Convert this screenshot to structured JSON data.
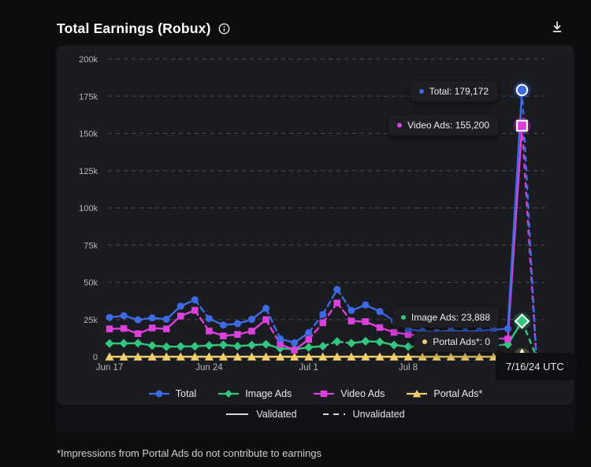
{
  "header": {
    "title": "Total Earnings (Robux)"
  },
  "footnote": {
    "text": "*Impressions from Portal Ads do not contribute to earnings"
  },
  "colors": {
    "page_bg": "#0c0d0f",
    "card_bg": "#121216",
    "panel_bg": "#1b1c21",
    "grid": "#47484d",
    "axis_zero": "#6f7076",
    "tick_text": "#b4b7bd",
    "total": "#3d6be5",
    "image": "#32c77f",
    "video": "#de40de",
    "portal": "#f2cf6d",
    "legend_line": "#d9dadd"
  },
  "tooltips": {
    "total": {
      "text": "Total: 179,172",
      "color": "#3d6be5"
    },
    "video": {
      "text": "Video Ads: 155,200",
      "color": "#de40de"
    },
    "image": {
      "text": "Image Ads: 23,888",
      "color": "#32c77f"
    },
    "portal": {
      "text": "Portal Ads*: 0",
      "color": "#f2cf6d"
    }
  },
  "date_tooltip": {
    "text": "7/16/24 UTC"
  },
  "legend": {
    "series": [
      {
        "label": "Total",
        "shape": "circle",
        "color": "#3d6be5"
      },
      {
        "label": "Image Ads",
        "shape": "diamond",
        "color": "#32c77f"
      },
      {
        "label": "Video Ads",
        "shape": "square",
        "color": "#de40de"
      },
      {
        "label": "Portal Ads*",
        "shape": "triangle",
        "color": "#f2cf6d"
      }
    ],
    "styles": [
      {
        "label": "Validated",
        "dashed": false
      },
      {
        "label": "Unvalidated",
        "dashed": true
      }
    ]
  },
  "chart_data": {
    "type": "line",
    "title": "Total Earnings (Robux)",
    "ylim": [
      0,
      200000
    ],
    "grid": "dashed-horizontal",
    "legend_position": "bottom",
    "dates": [
      "6/17",
      "6/18",
      "6/19",
      "6/20",
      "6/21",
      "6/22",
      "6/23",
      "6/24",
      "6/25",
      "6/26",
      "6/27",
      "6/28",
      "6/29",
      "6/30",
      "7/1",
      "7/2",
      "7/3",
      "7/4",
      "7/5",
      "7/6",
      "7/7",
      "7/8",
      "7/9",
      "7/10",
      "7/11",
      "7/12",
      "7/13",
      "7/14",
      "7/15",
      "7/16"
    ],
    "x_ticks": [
      {
        "label": "Jun 17",
        "index": 0
      },
      {
        "label": "Jun 24",
        "index": 7
      },
      {
        "label": "Jul 1",
        "index": 14
      },
      {
        "label": "Jul 8",
        "index": 21
      }
    ],
    "y_ticks": [
      {
        "label": "0",
        "value": 0
      },
      {
        "label": "25k",
        "value": 25000
      },
      {
        "label": "50k",
        "value": 50000
      },
      {
        "label": "75k",
        "value": 75000
      },
      {
        "label": "100k",
        "value": 100000
      },
      {
        "label": "125k",
        "value": 125000
      },
      {
        "label": "150k",
        "value": 150000
      },
      {
        "label": "175k",
        "value": 175000
      },
      {
        "label": "200k",
        "value": 200000
      }
    ],
    "highlight_index": 29,
    "highlight_date_label": "7/16/24 UTC",
    "series": [
      {
        "name": "Total",
        "shape": "circle",
        "color": "#3d6be5",
        "glow": "rgba(61,107,229,0.30)",
        "values": [
          26400,
          27600,
          24800,
          26100,
          25200,
          34000,
          38300,
          25600,
          21300,
          22200,
          25100,
          32500,
          12100,
          9400,
          16200,
          28400,
          45200,
          31100,
          34800,
          30400,
          24100,
          18600,
          17200,
          16500,
          17800,
          16900,
          17500,
          18200,
          18800,
          179172
        ],
        "dashed_segments": [
          6,
          11,
          14,
          15,
          16,
          29
        ],
        "post_value": 800
      },
      {
        "name": "Image Ads",
        "shape": "diamond",
        "color": "#32c77f",
        "glow": "rgba(50,199,127,0.25)",
        "values": [
          8900,
          9000,
          9100,
          7500,
          6700,
          6900,
          7000,
          7600,
          8000,
          7100,
          7800,
          8400,
          5700,
          5000,
          6300,
          7100,
          10200,
          9100,
          10400,
          10000,
          7900,
          6800,
          6500,
          6900,
          7200,
          6600,
          7000,
          7500,
          8300,
          23888
        ],
        "dashed_segments": [
          15,
          16,
          29
        ],
        "post_value": 300
      },
      {
        "name": "Video Ads",
        "shape": "square",
        "color": "#de40de",
        "glow": "rgba(222,64,222,0.30)",
        "values": [
          18700,
          19000,
          15500,
          19300,
          18700,
          27400,
          31200,
          17300,
          14000,
          15000,
          17200,
          24900,
          8400,
          4500,
          11600,
          22800,
          36100,
          24000,
          23600,
          19600,
          16400,
          15000,
          14200,
          13600,
          14500,
          13800,
          13200,
          12600,
          11900,
          155200
        ],
        "dashed_segments": [
          6,
          11,
          14,
          15,
          16,
          29
        ],
        "post_value": 500
      },
      {
        "name": "Portal Ads*",
        "shape": "triangle",
        "color": "#f2cf6d",
        "glow": "rgba(190,160,80,0.35)",
        "values": [
          0,
          0,
          0,
          0,
          0,
          0,
          0,
          0,
          0,
          0,
          0,
          0,
          0,
          0,
          0,
          0,
          0,
          0,
          0,
          0,
          0,
          0,
          0,
          0,
          0,
          0,
          0,
          0,
          0,
          0
        ],
        "dashed_segments": [],
        "post_value": null
      }
    ]
  }
}
